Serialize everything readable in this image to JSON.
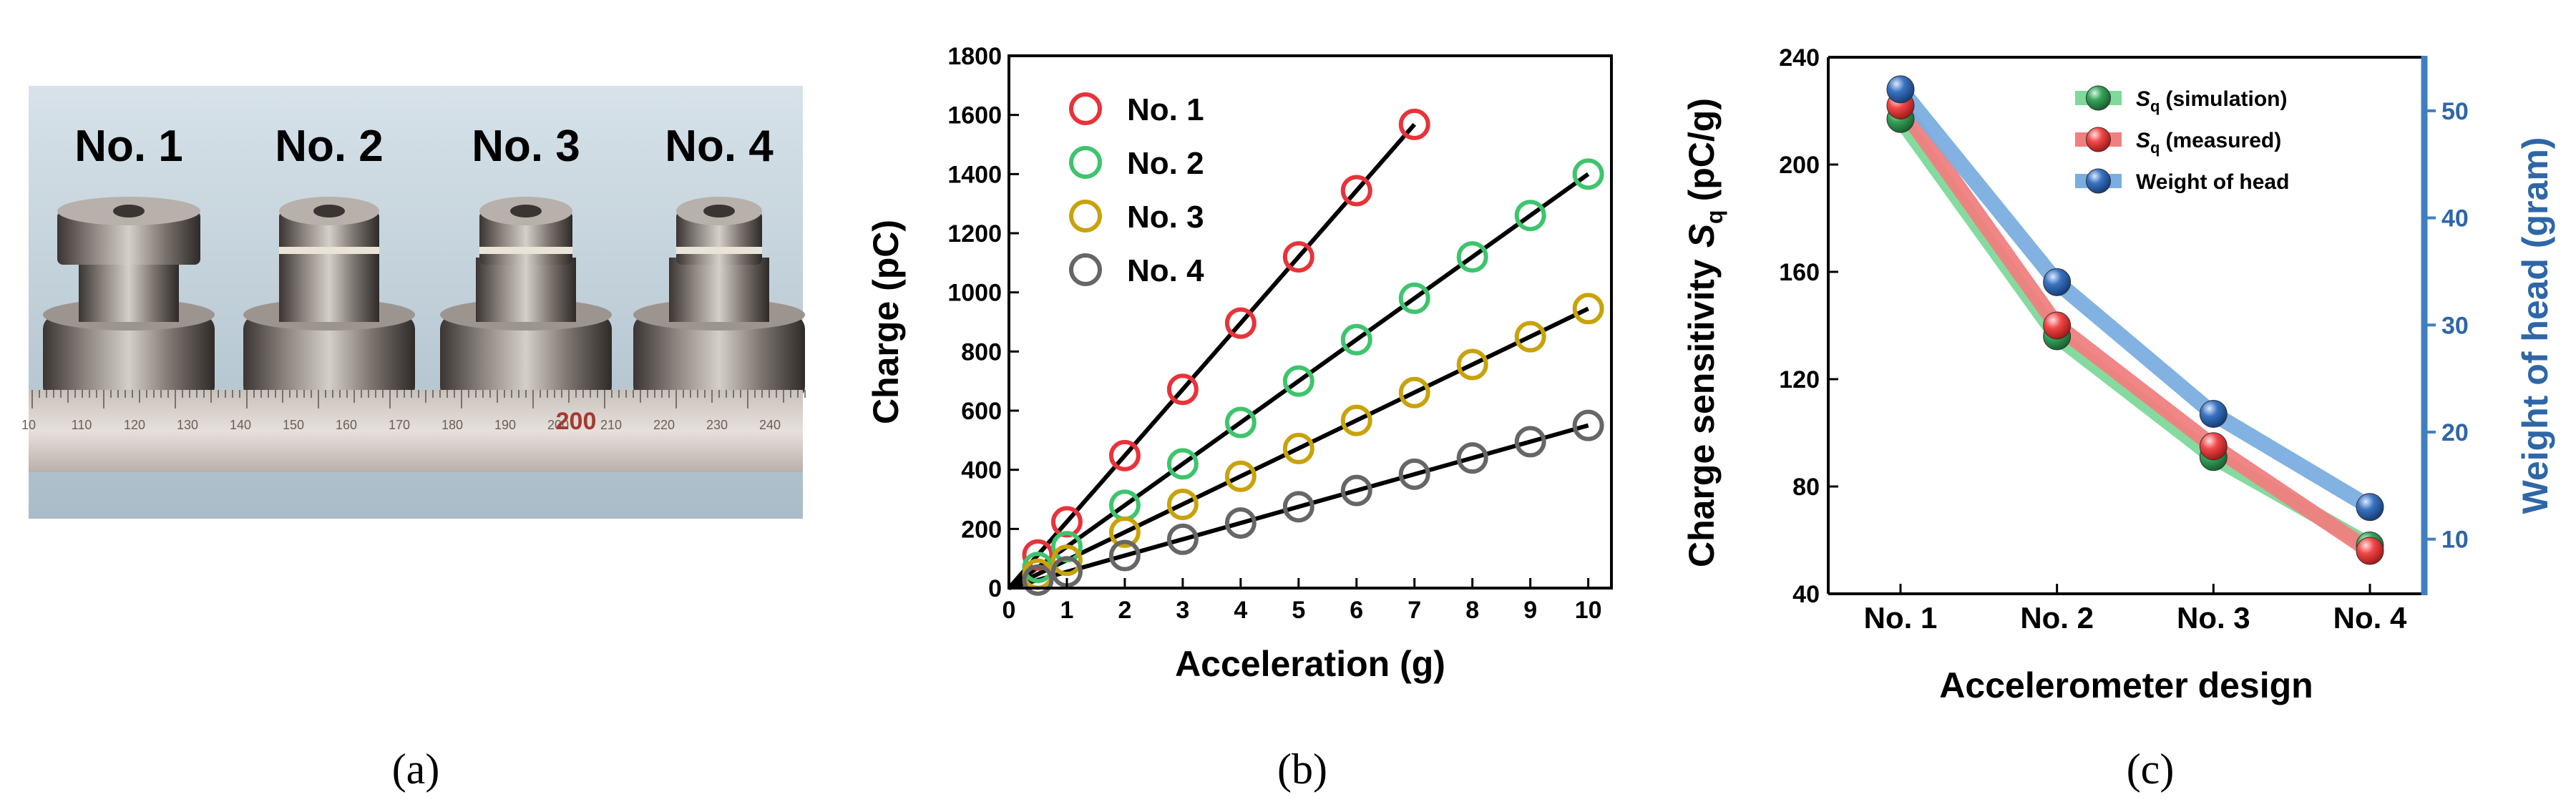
{
  "panels": {
    "a": "(a)",
    "b": "(b)",
    "c": "(c)"
  },
  "photo": {
    "labels": [
      "No. 1",
      "No. 2",
      "No. 3",
      "No. 4"
    ],
    "ruler_numbers": [
      "10",
      "110",
      "120",
      "130",
      "140",
      "150",
      "160",
      "170",
      "180",
      "190",
      "200",
      "210",
      "220",
      "230",
      "240"
    ],
    "ruler_highlight": "200"
  },
  "chart_data": [
    {
      "type": "scatter",
      "title": "",
      "xlabel": "Acceleration (g)",
      "ylabel": "Charge (pC)",
      "xlim": [
        0,
        10.4
      ],
      "ylim": [
        0,
        1800
      ],
      "xticks": [
        0,
        1,
        2,
        3,
        4,
        5,
        6,
        7,
        8,
        9,
        10
      ],
      "yticks": [
        0,
        200,
        400,
        600,
        800,
        1000,
        1200,
        1400,
        1600,
        1800
      ],
      "legend_position": "top-left",
      "series": [
        {
          "name": "No. 1",
          "color": "#e8333a",
          "x": [
            0.5,
            1,
            2,
            3,
            4,
            5,
            6,
            7
          ],
          "y": [
            112,
            224,
            448,
            672,
            896,
            1120,
            1344,
            1568
          ],
          "fit": {
            "x": [
              0,
              7
            ],
            "y": [
              0,
              1568
            ]
          }
        },
        {
          "name": "No. 2",
          "color": "#3ec46d",
          "x": [
            0.5,
            1,
            2,
            3,
            4,
            5,
            6,
            7,
            8,
            9,
            10
          ],
          "y": [
            70,
            140,
            280,
            420,
            560,
            700,
            840,
            980,
            1120,
            1260,
            1400
          ],
          "fit": {
            "x": [
              0,
              10
            ],
            "y": [
              0,
              1400
            ]
          }
        },
        {
          "name": "No. 3",
          "color": "#c9a20a",
          "x": [
            0.5,
            1,
            2,
            3,
            4,
            5,
            6,
            7,
            8,
            9,
            10
          ],
          "y": [
            47,
            94,
            189,
            283,
            378,
            472,
            567,
            661,
            756,
            850,
            945
          ],
          "fit": {
            "x": [
              0,
              10
            ],
            "y": [
              0,
              945
            ]
          }
        },
        {
          "name": "No. 4",
          "color": "#666666",
          "x": [
            0.5,
            1,
            2,
            3,
            4,
            5,
            6,
            7,
            8,
            9,
            10
          ],
          "y": [
            27,
            55,
            110,
            165,
            220,
            275,
            330,
            385,
            440,
            495,
            550
          ],
          "fit": {
            "x": [
              0,
              10
            ],
            "y": [
              0,
              550
            ]
          }
        }
      ]
    },
    {
      "type": "line",
      "title": "",
      "xlabel": "Accelerometer design",
      "ylabel": "Charge sensitivity",
      "ylabel_symbol": "S",
      "ylabel_subscript": "q",
      "ylabel_unit": "(pC/g)",
      "y2label": "Weight of head (gram)",
      "categories": [
        "No. 1",
        "No. 2",
        "No. 3",
        "No. 4"
      ],
      "ylim": [
        40,
        240
      ],
      "yticks": [
        40,
        80,
        120,
        160,
        200,
        240
      ],
      "y2lim": [
        4.9,
        55
      ],
      "y2ticks": [
        10,
        20,
        30,
        40,
        50
      ],
      "legend_position": "top-right",
      "series": [
        {
          "name": "(simulation)",
          "symbol": "S",
          "subscript": "q",
          "color": "#2e8b47",
          "line_color": "#7ed99a",
          "axis": "left",
          "values": [
            217,
            136,
            91,
            58
          ]
        },
        {
          "name": "(measured)",
          "symbol": "S",
          "subscript": "q",
          "color": "#ef3b3b",
          "line_color": "#f08080",
          "axis": "left",
          "values": [
            222,
            140,
            95,
            56
          ]
        },
        {
          "name": "Weight of head",
          "color": "#2e6db0",
          "line_color": "#7aaee0",
          "axis": "right",
          "values": [
            52,
            34,
            21.7,
            13
          ]
        }
      ]
    }
  ]
}
